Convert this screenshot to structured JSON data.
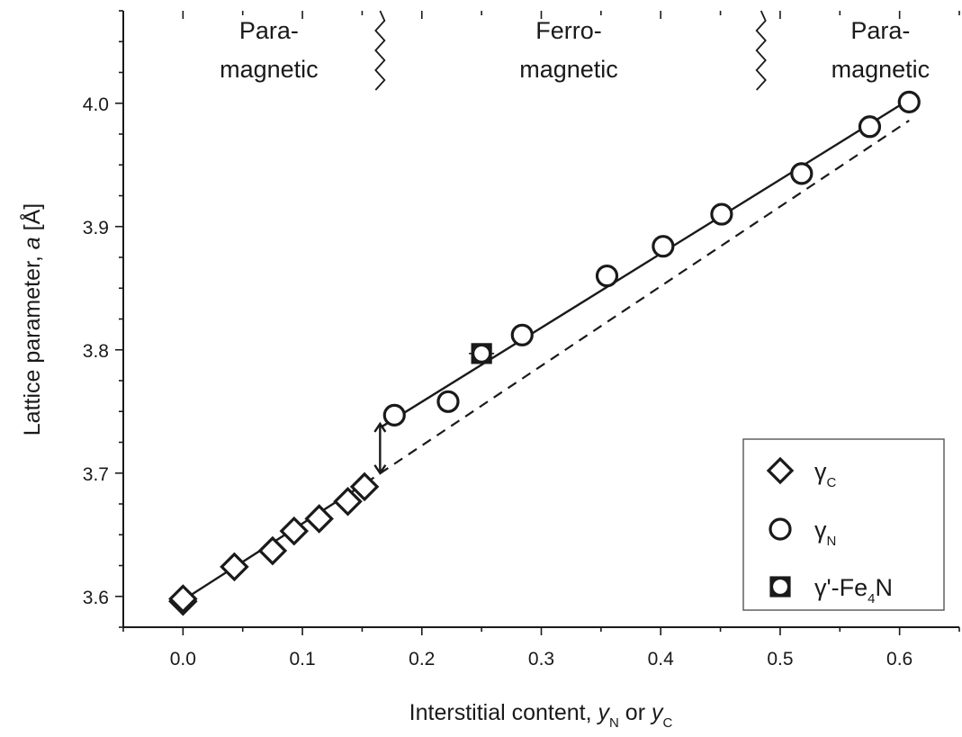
{
  "chart_data": {
    "type": "scatter",
    "xlabel": "Interstitial content, y",
    "xlabel_parts": {
      "prefix": "Interstitial content, ",
      "var1": "y",
      "sub1": "N",
      "mid": " or ",
      "var2": "y",
      "sub2": "C"
    },
    "ylabel": "Lattice parameter, a [Å]",
    "ylabel_parts": {
      "prefix": "Lattice parameter, ",
      "var": "a",
      "suffix": " [Å]"
    },
    "xlim": [
      -0.05,
      0.65
    ],
    "ylim": [
      3.575,
      4.075
    ],
    "x_ticks": [
      0.0,
      0.1,
      0.2,
      0.3,
      0.4,
      0.5,
      0.6
    ],
    "x_tick_labels": [
      "0.0",
      "0.1",
      "0.2",
      "0.3",
      "0.4",
      "0.5",
      "0.6"
    ],
    "y_ticks": [
      3.6,
      3.7,
      3.8,
      3.9,
      4.0
    ],
    "y_tick_labels": [
      "3.6",
      "3.7",
      "3.8",
      "3.9",
      "4.0"
    ],
    "grid": false,
    "legend_position": "bottom-right",
    "series": [
      {
        "name": "γC",
        "label_main": "γ",
        "label_sub": "C",
        "marker": "diamond",
        "x": [
          0.0,
          0.0,
          0.043,
          0.075,
          0.093,
          0.114,
          0.138,
          0.152
        ],
        "y": [
          3.596,
          3.598,
          3.624,
          3.637,
          3.653,
          3.663,
          3.677,
          3.689
        ]
      },
      {
        "name": "γN",
        "label_main": "γ",
        "label_sub": "N",
        "marker": "circle",
        "x": [
          0.177,
          0.222,
          0.284,
          0.355,
          0.402,
          0.451,
          0.518,
          0.575,
          0.608
        ],
        "y": [
          3.747,
          3.758,
          3.812,
          3.86,
          3.884,
          3.91,
          3.943,
          3.981,
          4.001
        ]
      },
      {
        "name": "γ'-Fe4N",
        "label_main": "γ'-Fe",
        "label_sub": "4",
        "label_tail": "N",
        "marker": "crossed-square",
        "x": [
          0.25
        ],
        "y": [
          3.797
        ]
      }
    ],
    "lines": [
      {
        "style": "solid",
        "x": [
          0.0,
          0.153
        ],
        "y": [
          3.597,
          3.692
        ]
      },
      {
        "style": "solid",
        "x": [
          0.167,
          0.608
        ],
        "y": [
          3.738,
          4.003
        ]
      },
      {
        "style": "dashed",
        "x": [
          0.153,
          0.608
        ],
        "y": [
          3.692,
          3.986
        ]
      }
    ],
    "annotations": {
      "gap_arrow": {
        "x": 0.165,
        "y_from": 3.7,
        "y_to": 3.74
      },
      "boundaries_x": [
        0.165,
        0.484
      ],
      "regions": [
        {
          "line1": "Para-",
          "line2": "magnetic",
          "x": 0.072
        },
        {
          "line1": "Ferro-",
          "line2": "magnetic",
          "x": 0.323
        },
        {
          "line1": "Para-",
          "line2": "magnetic",
          "x": 0.584
        }
      ]
    }
  }
}
